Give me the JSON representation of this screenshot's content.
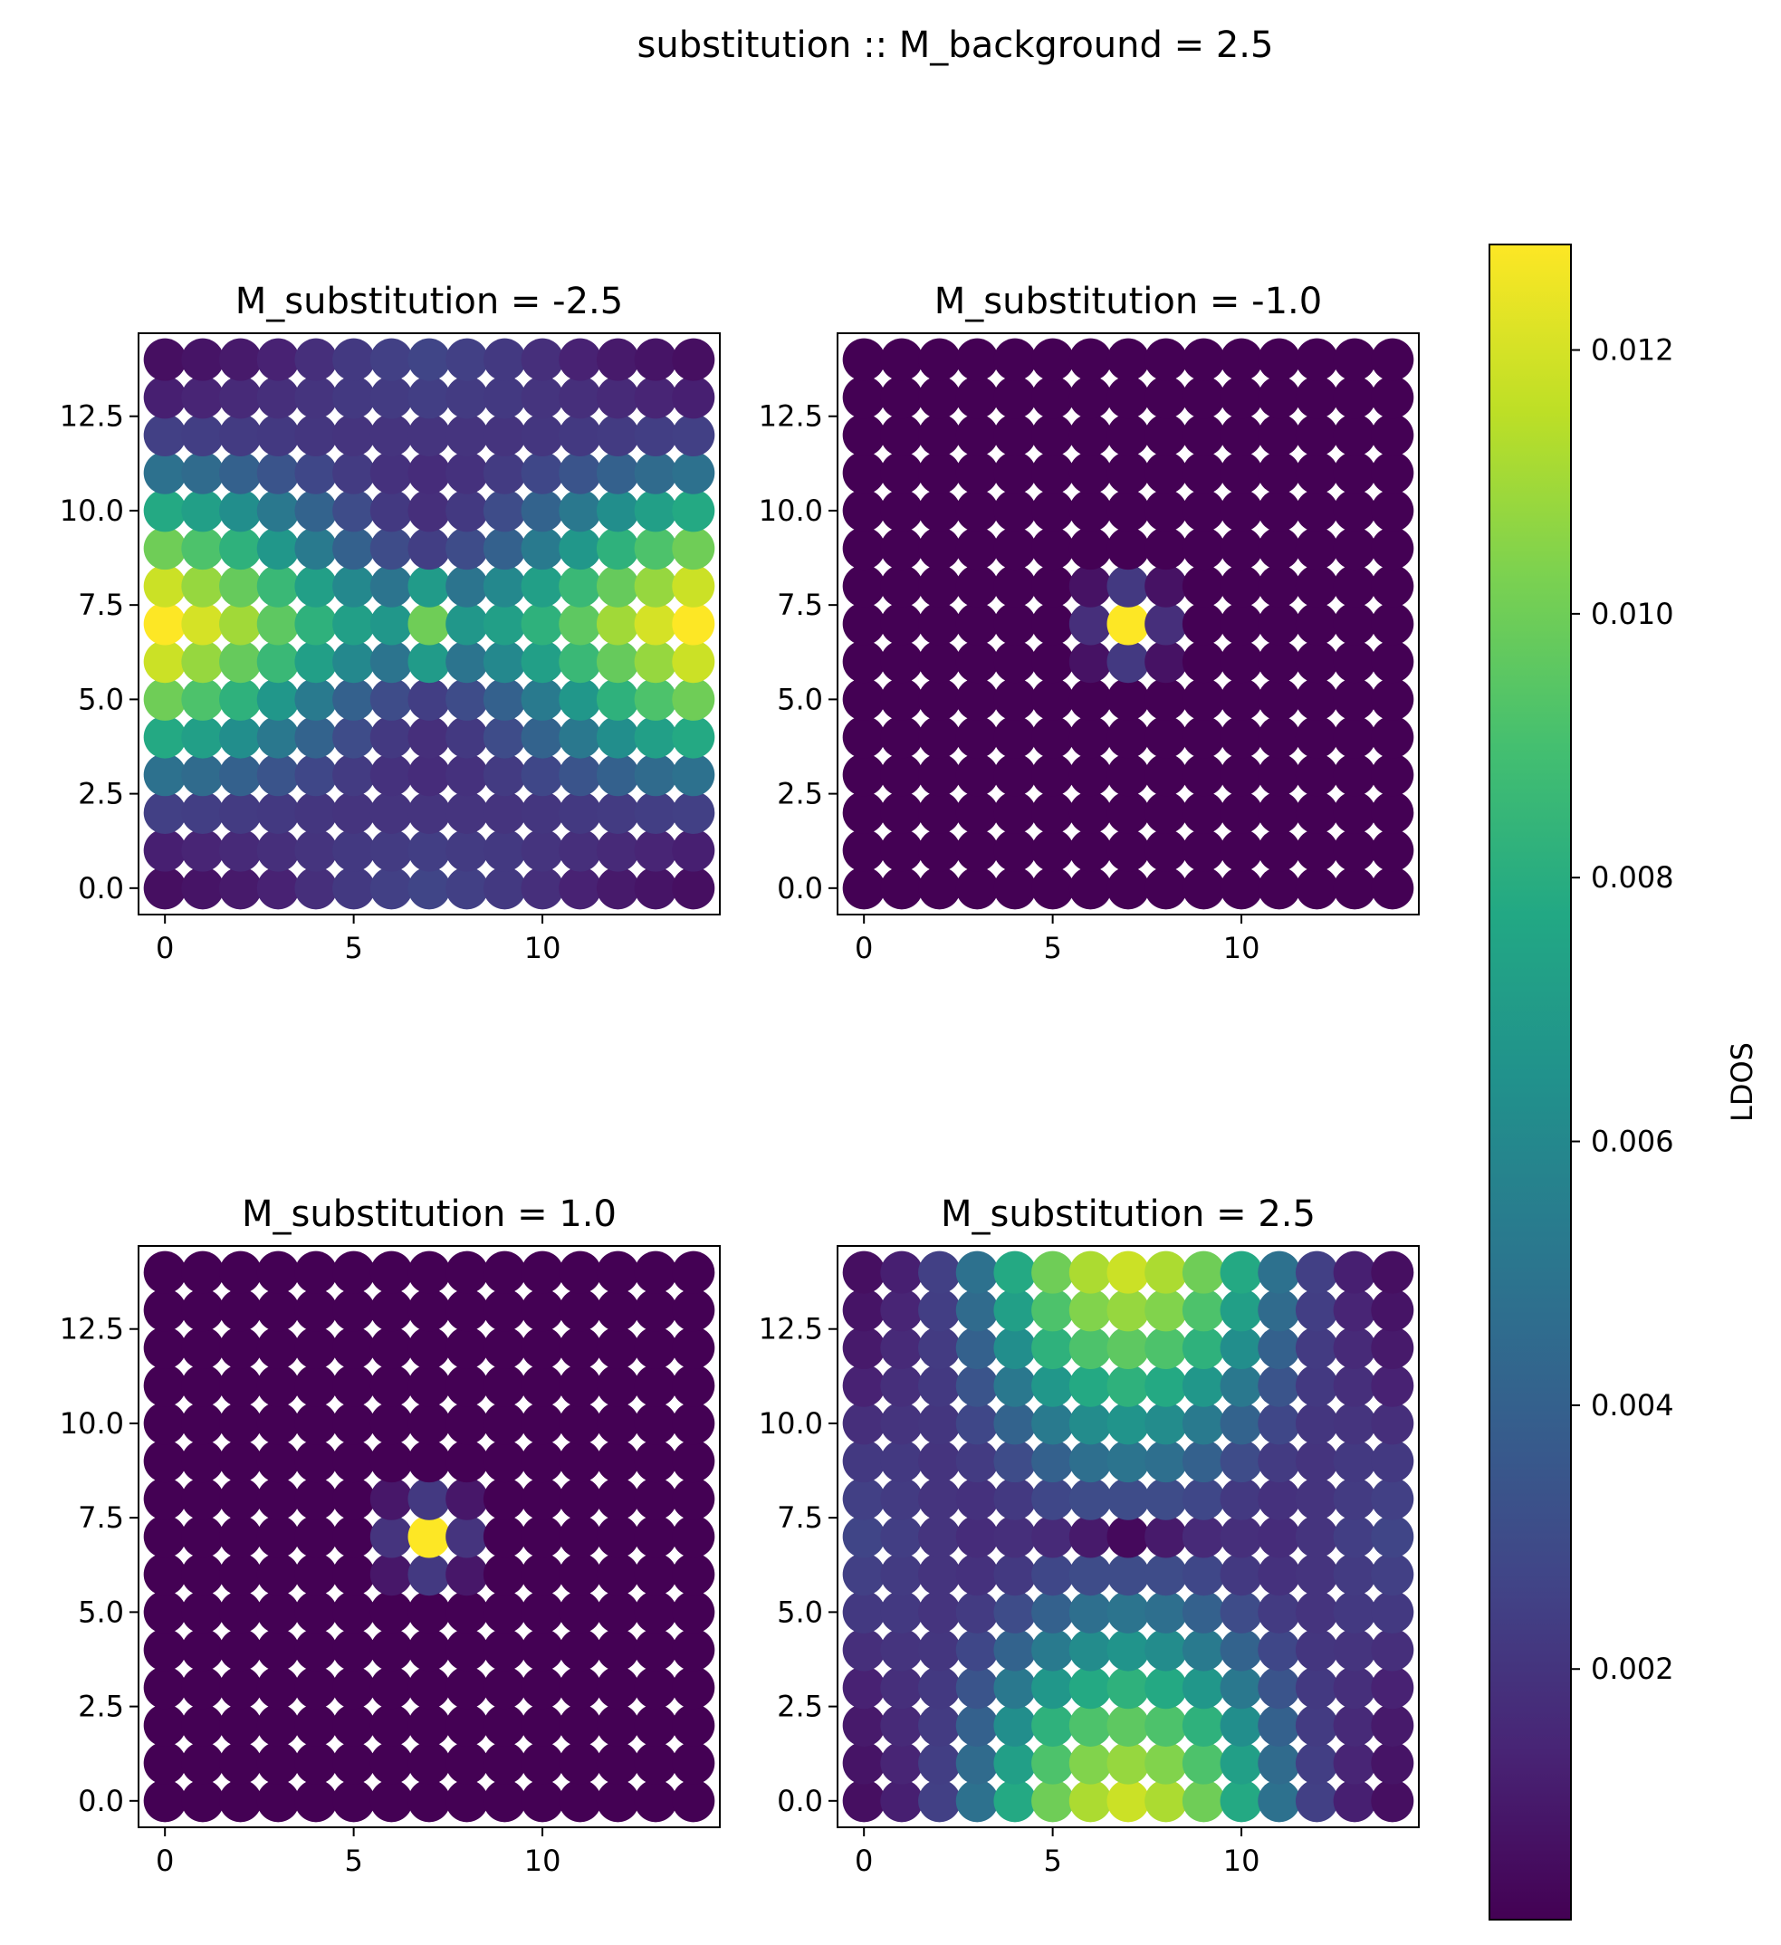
{
  "figure": {
    "suptitle": "substitution :: M_background = 2.5"
  },
  "colorbar": {
    "label": "LDOS",
    "colormap": "viridis",
    "vmin": 0.0001,
    "vmax": 0.0128,
    "ticks": [
      0.002,
      0.004,
      0.006,
      0.008,
      0.01,
      0.012
    ],
    "tick_labels": [
      "0.002",
      "0.004",
      "0.006",
      "0.008",
      "0.010",
      "0.012"
    ]
  },
  "chart_data": [
    {
      "type": "scatter",
      "title": "M_substitution = -2.5",
      "grid": false,
      "xlim": [
        -0.7,
        14.7
      ],
      "ylim": [
        -0.7,
        14.7
      ],
      "xticks": [
        0,
        5,
        10
      ],
      "xtick_labels": [
        "0",
        "5",
        "10"
      ],
      "yticks": [
        0,
        2.5,
        5,
        7.5,
        10,
        12.5
      ],
      "ytick_labels": [
        "0.0",
        "2.5",
        "5.0",
        "7.5",
        "10.0",
        "12.5"
      ],
      "x": [
        0,
        1,
        2,
        3,
        4,
        5,
        6,
        7,
        8,
        9,
        10,
        11,
        12,
        13,
        14
      ],
      "y": [
        0,
        1,
        2,
        3,
        4,
        5,
        6,
        7,
        8,
        9,
        10,
        11,
        12,
        13,
        14
      ],
      "values": [
        [
          0.0006,
          0.0008,
          0.001,
          0.0013,
          0.0018,
          0.0022,
          0.0025,
          0.0027,
          0.0025,
          0.0022,
          0.0018,
          0.0013,
          0.001,
          0.0008,
          0.0006
        ],
        [
          0.0012,
          0.0014,
          0.0016,
          0.0018,
          0.002,
          0.0022,
          0.0023,
          0.0024,
          0.0023,
          0.0022,
          0.002,
          0.0018,
          0.0016,
          0.0014,
          0.0012
        ],
        [
          0.0025,
          0.0024,
          0.0023,
          0.0022,
          0.0021,
          0.002,
          0.002,
          0.002,
          0.002,
          0.002,
          0.0021,
          0.0022,
          0.0023,
          0.0024,
          0.0025
        ],
        [
          0.0048,
          0.0045,
          0.004,
          0.0034,
          0.0028,
          0.0023,
          0.0019,
          0.0017,
          0.0019,
          0.0023,
          0.0028,
          0.0034,
          0.004,
          0.0045,
          0.0048
        ],
        [
          0.0078,
          0.0072,
          0.0063,
          0.0052,
          0.0041,
          0.003,
          0.0022,
          0.0018,
          0.0022,
          0.003,
          0.0041,
          0.0052,
          0.0063,
          0.0072,
          0.0078
        ],
        [
          0.01,
          0.0092,
          0.0082,
          0.0068,
          0.0053,
          0.004,
          0.003,
          0.0024,
          0.003,
          0.004,
          0.0053,
          0.0068,
          0.0082,
          0.0092,
          0.01
        ],
        [
          0.0118,
          0.0108,
          0.0098,
          0.0086,
          0.0072,
          0.006,
          0.005,
          0.007,
          0.005,
          0.006,
          0.0072,
          0.0086,
          0.0098,
          0.0108,
          0.0118
        ],
        [
          0.0128,
          0.012,
          0.011,
          0.0096,
          0.0082,
          0.0072,
          0.0068,
          0.01,
          0.0068,
          0.0072,
          0.0082,
          0.0096,
          0.011,
          0.012,
          0.0128
        ],
        [
          0.0118,
          0.0108,
          0.0098,
          0.0086,
          0.0072,
          0.006,
          0.005,
          0.007,
          0.005,
          0.006,
          0.0072,
          0.0086,
          0.0098,
          0.0108,
          0.0118
        ],
        [
          0.01,
          0.0092,
          0.0082,
          0.0068,
          0.0053,
          0.004,
          0.003,
          0.0024,
          0.003,
          0.004,
          0.0053,
          0.0068,
          0.0082,
          0.0092,
          0.01
        ],
        [
          0.0078,
          0.0072,
          0.0063,
          0.0052,
          0.0041,
          0.003,
          0.0022,
          0.0018,
          0.0022,
          0.003,
          0.0041,
          0.0052,
          0.0063,
          0.0072,
          0.0078
        ],
        [
          0.0048,
          0.0045,
          0.004,
          0.0034,
          0.0028,
          0.0023,
          0.0019,
          0.0017,
          0.0019,
          0.0023,
          0.0028,
          0.0034,
          0.004,
          0.0045,
          0.0048
        ],
        [
          0.0025,
          0.0024,
          0.0023,
          0.0022,
          0.0021,
          0.002,
          0.002,
          0.002,
          0.002,
          0.002,
          0.0021,
          0.0022,
          0.0023,
          0.0024,
          0.0025
        ],
        [
          0.0012,
          0.0014,
          0.0016,
          0.0018,
          0.002,
          0.0022,
          0.0023,
          0.0024,
          0.0023,
          0.0022,
          0.002,
          0.0018,
          0.0016,
          0.0014,
          0.0012
        ],
        [
          0.0006,
          0.0008,
          0.001,
          0.0013,
          0.0018,
          0.0022,
          0.0025,
          0.0027,
          0.0025,
          0.0022,
          0.0018,
          0.0013,
          0.001,
          0.0008,
          0.0006
        ]
      ]
    },
    {
      "type": "scatter",
      "title": "M_substitution = -1.0",
      "grid": false,
      "xlim": [
        -0.7,
        14.7
      ],
      "ylim": [
        -0.7,
        14.7
      ],
      "xticks": [
        0,
        5,
        10
      ],
      "xtick_labels": [
        "0",
        "5",
        "10"
      ],
      "yticks": [
        0,
        2.5,
        5,
        7.5,
        10,
        12.5
      ],
      "ytick_labels": [
        "0.0",
        "2.5",
        "5.0",
        "7.5",
        "10.0",
        "12.5"
      ],
      "x": [
        0,
        1,
        2,
        3,
        4,
        5,
        6,
        7,
        8,
        9,
        10,
        11,
        12,
        13,
        14
      ],
      "y": [
        0,
        1,
        2,
        3,
        4,
        5,
        6,
        7,
        8,
        9,
        10,
        11,
        12,
        13,
        14
      ],
      "background_value": 0.0001,
      "peak": {
        "x": 7,
        "y": 7,
        "value": 0.0128
      },
      "neighbors": [
        {
          "x": 6,
          "y": 7,
          "value": 0.0018
        },
        {
          "x": 8,
          "y": 7,
          "value": 0.0018
        },
        {
          "x": 7,
          "y": 6,
          "value": 0.0022
        },
        {
          "x": 7,
          "y": 8,
          "value": 0.0022
        },
        {
          "x": 6,
          "y": 6,
          "value": 0.0007
        },
        {
          "x": 8,
          "y": 6,
          "value": 0.0007
        },
        {
          "x": 6,
          "y": 8,
          "value": 0.0007
        },
        {
          "x": 8,
          "y": 8,
          "value": 0.0007
        }
      ]
    },
    {
      "type": "scatter",
      "title": "M_substitution = 1.0",
      "grid": false,
      "xlim": [
        -0.7,
        14.7
      ],
      "ylim": [
        -0.7,
        14.7
      ],
      "xticks": [
        0,
        5,
        10
      ],
      "xtick_labels": [
        "0",
        "5",
        "10"
      ],
      "yticks": [
        0,
        2.5,
        5,
        7.5,
        10,
        12.5
      ],
      "ytick_labels": [
        "0.0",
        "2.5",
        "5.0",
        "7.5",
        "10.0",
        "12.5"
      ],
      "x": [
        0,
        1,
        2,
        3,
        4,
        5,
        6,
        7,
        8,
        9,
        10,
        11,
        12,
        13,
        14
      ],
      "y": [
        0,
        1,
        2,
        3,
        4,
        5,
        6,
        7,
        8,
        9,
        10,
        11,
        12,
        13,
        14
      ],
      "background_value": 0.0001,
      "peak": {
        "x": 7,
        "y": 7,
        "value": 0.0128
      },
      "neighbors": [
        {
          "x": 6,
          "y": 7,
          "value": 0.002
        },
        {
          "x": 8,
          "y": 7,
          "value": 0.002
        },
        {
          "x": 7,
          "y": 6,
          "value": 0.0022
        },
        {
          "x": 7,
          "y": 8,
          "value": 0.0022
        },
        {
          "x": 6,
          "y": 6,
          "value": 0.0009
        },
        {
          "x": 8,
          "y": 6,
          "value": 0.0009
        },
        {
          "x": 6,
          "y": 8,
          "value": 0.0009
        },
        {
          "x": 8,
          "y": 8,
          "value": 0.0009
        }
      ]
    },
    {
      "type": "scatter",
      "title": "M_substitution = 2.5",
      "grid": false,
      "xlim": [
        -0.7,
        14.7
      ],
      "ylim": [
        -0.7,
        14.7
      ],
      "xticks": [
        0,
        5,
        10
      ],
      "xtick_labels": [
        "0",
        "5",
        "10"
      ],
      "yticks": [
        0,
        2.5,
        5,
        7.5,
        10,
        12.5
      ],
      "ytick_labels": [
        "0.0",
        "2.5",
        "5.0",
        "7.5",
        "10.0",
        "12.5"
      ],
      "x": [
        0,
        1,
        2,
        3,
        4,
        5,
        6,
        7,
        8,
        9,
        10,
        11,
        12,
        13,
        14
      ],
      "y": [
        0,
        1,
        2,
        3,
        4,
        5,
        6,
        7,
        8,
        9,
        10,
        11,
        12,
        13,
        14
      ],
      "values": [
        [
          0.0006,
          0.0012,
          0.0025,
          0.0048,
          0.0078,
          0.01,
          0.0112,
          0.0118,
          0.0112,
          0.01,
          0.0078,
          0.0048,
          0.0025,
          0.0012,
          0.0006
        ],
        [
          0.0008,
          0.0014,
          0.0024,
          0.0045,
          0.0072,
          0.0092,
          0.0104,
          0.0108,
          0.0104,
          0.0092,
          0.0072,
          0.0045,
          0.0024,
          0.0014,
          0.0008
        ],
        [
          0.001,
          0.0016,
          0.0023,
          0.004,
          0.0063,
          0.0082,
          0.0092,
          0.0096,
          0.0092,
          0.0082,
          0.0063,
          0.004,
          0.0023,
          0.0016,
          0.001
        ],
        [
          0.0013,
          0.0018,
          0.0022,
          0.0034,
          0.0052,
          0.0068,
          0.0078,
          0.0082,
          0.0078,
          0.0068,
          0.0052,
          0.0034,
          0.0022,
          0.0018,
          0.0013
        ],
        [
          0.0018,
          0.002,
          0.0021,
          0.0028,
          0.0041,
          0.0053,
          0.0062,
          0.0066,
          0.0062,
          0.0053,
          0.0041,
          0.0028,
          0.0021,
          0.002,
          0.0018
        ],
        [
          0.0022,
          0.0022,
          0.002,
          0.0023,
          0.003,
          0.004,
          0.0047,
          0.005,
          0.0047,
          0.004,
          0.003,
          0.0023,
          0.002,
          0.0022,
          0.0022
        ],
        [
          0.0025,
          0.0023,
          0.002,
          0.0019,
          0.0022,
          0.0028,
          0.003,
          0.003,
          0.003,
          0.0028,
          0.0022,
          0.0019,
          0.002,
          0.0023,
          0.0025
        ],
        [
          0.0027,
          0.0024,
          0.002,
          0.0017,
          0.0018,
          0.0016,
          0.001,
          0.0004,
          0.001,
          0.0016,
          0.0018,
          0.0017,
          0.002,
          0.0024,
          0.0027
        ],
        [
          0.0025,
          0.0023,
          0.002,
          0.0019,
          0.0022,
          0.0028,
          0.003,
          0.003,
          0.003,
          0.0028,
          0.0022,
          0.0019,
          0.002,
          0.0023,
          0.0025
        ],
        [
          0.0022,
          0.0022,
          0.002,
          0.0023,
          0.003,
          0.004,
          0.0047,
          0.005,
          0.0047,
          0.004,
          0.003,
          0.0023,
          0.002,
          0.0022,
          0.0022
        ],
        [
          0.0018,
          0.002,
          0.0021,
          0.0028,
          0.0041,
          0.0053,
          0.0062,
          0.0066,
          0.0062,
          0.0053,
          0.0041,
          0.0028,
          0.0021,
          0.002,
          0.0018
        ],
        [
          0.0013,
          0.0018,
          0.0022,
          0.0034,
          0.0052,
          0.0068,
          0.0078,
          0.0082,
          0.0078,
          0.0068,
          0.0052,
          0.0034,
          0.0022,
          0.0018,
          0.0013
        ],
        [
          0.001,
          0.0016,
          0.0023,
          0.004,
          0.0063,
          0.0082,
          0.0092,
          0.0096,
          0.0092,
          0.0082,
          0.0063,
          0.004,
          0.0023,
          0.0016,
          0.001
        ],
        [
          0.0008,
          0.0014,
          0.0024,
          0.0045,
          0.0072,
          0.0092,
          0.0104,
          0.0108,
          0.0104,
          0.0092,
          0.0072,
          0.0045,
          0.0024,
          0.0014,
          0.0008
        ],
        [
          0.0006,
          0.0012,
          0.0025,
          0.0048,
          0.0078,
          0.01,
          0.0112,
          0.0118,
          0.0112,
          0.01,
          0.0078,
          0.0048,
          0.0025,
          0.0012,
          0.0006
        ]
      ]
    }
  ]
}
